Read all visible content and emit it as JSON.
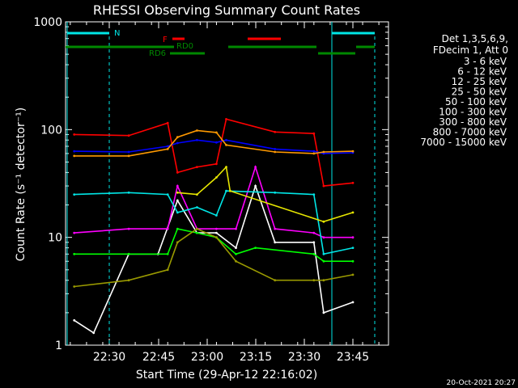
{
  "chart_data": {
    "type": "line",
    "title": "RHESSI Observing Summary Count Rates",
    "xlabel": "Start Time (29-Apr-12 22:16:02)",
    "ylabel": "Count Rate (s⁻¹ detector⁻¹)",
    "yscale": "log",
    "ylim": [
      1,
      1000
    ],
    "xlim_minutes": [
      22.267,
      23.93
    ],
    "x_ticks": [
      "22:30",
      "22:45",
      "23:00",
      "23:15",
      "23:30",
      "23:45"
    ],
    "y_ticks": [
      "1",
      "10",
      "100",
      "1000"
    ],
    "timestamp": "20-Oct-2021 20:27",
    "legend_header": [
      "Det 1,3,5,6,9,",
      "FDecim 1, Att 0"
    ],
    "flags": {
      "N": {
        "label": "N",
        "color": "#00e6e6"
      },
      "F": {
        "label": "F",
        "color": "#ff0000"
      },
      "RD0": {
        "label": "RD0",
        "color": "#008800"
      },
      "RD6": {
        "label": "RD6",
        "color": "#008800"
      }
    },
    "series": [
      {
        "name": "3 - 6 keV",
        "color": "#ffffff",
        "points": [
          [
            22.32,
            1.7
          ],
          [
            22.42,
            1.3
          ],
          [
            22.6,
            7
          ],
          [
            22.75,
            7
          ],
          [
            22.85,
            22
          ],
          [
            22.95,
            11
          ],
          [
            23.05,
            11
          ],
          [
            23.15,
            8
          ],
          [
            23.25,
            30
          ],
          [
            23.35,
            9
          ],
          [
            23.55,
            9
          ],
          [
            23.6,
            2
          ],
          [
            23.75,
            2.5
          ]
        ]
      },
      {
        "name": "6 - 12 keV",
        "color": "#ff00ff",
        "points": [
          [
            22.32,
            11
          ],
          [
            22.6,
            12
          ],
          [
            22.8,
            12
          ],
          [
            22.85,
            30
          ],
          [
            22.95,
            12
          ],
          [
            23.05,
            12
          ],
          [
            23.15,
            12
          ],
          [
            23.25,
            45
          ],
          [
            23.35,
            12
          ],
          [
            23.55,
            11
          ],
          [
            23.6,
            10
          ],
          [
            23.75,
            10
          ]
        ]
      },
      {
        "name": "12 - 25 keV",
        "color": "#00ff00",
        "points": [
          [
            22.32,
            7
          ],
          [
            22.6,
            7
          ],
          [
            22.8,
            7
          ],
          [
            22.85,
            12
          ],
          [
            22.95,
            11
          ],
          [
            23.05,
            10
          ],
          [
            23.15,
            7
          ],
          [
            23.25,
            8
          ],
          [
            23.55,
            7
          ],
          [
            23.6,
            6
          ],
          [
            23.75,
            6
          ]
        ]
      },
      {
        "name": "25 - 50 keV",
        "color": "#00e6e6",
        "points": [
          [
            22.32,
            25
          ],
          [
            22.6,
            26
          ],
          [
            22.8,
            25
          ],
          [
            22.85,
            17
          ],
          [
            22.95,
            19
          ],
          [
            23.05,
            16
          ],
          [
            23.1,
            27
          ],
          [
            23.35,
            26
          ],
          [
            23.55,
            25
          ],
          [
            23.6,
            7
          ],
          [
            23.75,
            8
          ]
        ]
      },
      {
        "name": "50 - 100 keV",
        "color": "#e6e600",
        "points": [
          [
            22.85,
            26
          ],
          [
            22.95,
            25
          ],
          [
            23.05,
            36
          ],
          [
            23.1,
            45
          ],
          [
            23.12,
            27
          ],
          [
            23.6,
            14
          ],
          [
            23.75,
            17
          ]
        ]
      },
      {
        "name": "100 - 300 keV",
        "color": "#ff0000",
        "points": [
          [
            22.32,
            90
          ],
          [
            22.6,
            88
          ],
          [
            22.8,
            115
          ],
          [
            22.85,
            40
          ],
          [
            22.95,
            45
          ],
          [
            23.05,
            48
          ],
          [
            23.1,
            125
          ],
          [
            23.35,
            95
          ],
          [
            23.55,
            92
          ],
          [
            23.6,
            30
          ],
          [
            23.75,
            32
          ]
        ]
      },
      {
        "name": "300 - 800 keV",
        "color": "#0000ff",
        "points": [
          [
            22.32,
            63
          ],
          [
            22.6,
            62
          ],
          [
            22.8,
            70
          ],
          [
            22.85,
            75
          ],
          [
            22.95,
            80
          ],
          [
            23.05,
            76
          ],
          [
            23.1,
            80
          ],
          [
            23.35,
            66
          ],
          [
            23.55,
            63
          ],
          [
            23.6,
            60
          ],
          [
            23.75,
            61
          ]
        ]
      },
      {
        "name": "800 - 7000 keV",
        "color": "#ff9900",
        "points": [
          [
            22.32,
            57
          ],
          [
            22.6,
            57
          ],
          [
            22.8,
            66
          ],
          [
            22.85,
            85
          ],
          [
            22.95,
            98
          ],
          [
            23.05,
            94
          ],
          [
            23.1,
            72
          ],
          [
            23.35,
            62
          ],
          [
            23.55,
            60
          ],
          [
            23.6,
            62
          ],
          [
            23.75,
            63
          ]
        ]
      },
      {
        "name": "7000 - 15000 keV",
        "color": "#999900",
        "points": [
          [
            22.32,
            3.5
          ],
          [
            22.6,
            4
          ],
          [
            22.8,
            5
          ],
          [
            22.85,
            9
          ],
          [
            22.95,
            12
          ],
          [
            23.05,
            10
          ],
          [
            23.15,
            6
          ],
          [
            23.35,
            4
          ],
          [
            23.55,
            4
          ],
          [
            23.6,
            4
          ],
          [
            23.75,
            4.5
          ]
        ]
      }
    ]
  }
}
